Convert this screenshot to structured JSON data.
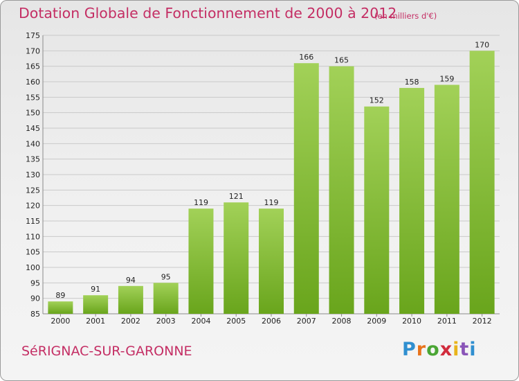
{
  "header": {
    "title": "Dotation Globale de Fonctionnement de 2000 à 2012",
    "unit": "(en milliers d'€)"
  },
  "footer": {
    "commune": "SéRIGNAC-SUR-GARONNE",
    "logo": {
      "letters": [
        "P",
        "r",
        "o",
        "x",
        "i",
        "t",
        "i"
      ],
      "colors": [
        "#2f8fd0",
        "#e8731c",
        "#4aa534",
        "#d12b3c",
        "#e8b31b",
        "#8a55b8",
        "#2f8fd0"
      ]
    }
  },
  "colors": {
    "accent": "#c42e64",
    "bar_top": "#a2d158",
    "bar_bottom": "#69a51c",
    "grid": "#c9c9c9"
  },
  "chart_data": {
    "type": "bar",
    "categories": [
      "2000",
      "2001",
      "2002",
      "2003",
      "2004",
      "2005",
      "2006",
      "2007",
      "2008",
      "2009",
      "2010",
      "2011",
      "2012"
    ],
    "values": [
      89,
      91,
      94,
      95,
      119,
      121,
      119,
      166,
      165,
      152,
      158,
      159,
      170
    ],
    "ylim": [
      85,
      175
    ],
    "yticks": [
      85,
      90,
      95,
      100,
      105,
      110,
      115,
      120,
      125,
      130,
      135,
      140,
      145,
      150,
      155,
      160,
      165,
      170,
      175
    ],
    "grid": true,
    "data_labels": true
  }
}
